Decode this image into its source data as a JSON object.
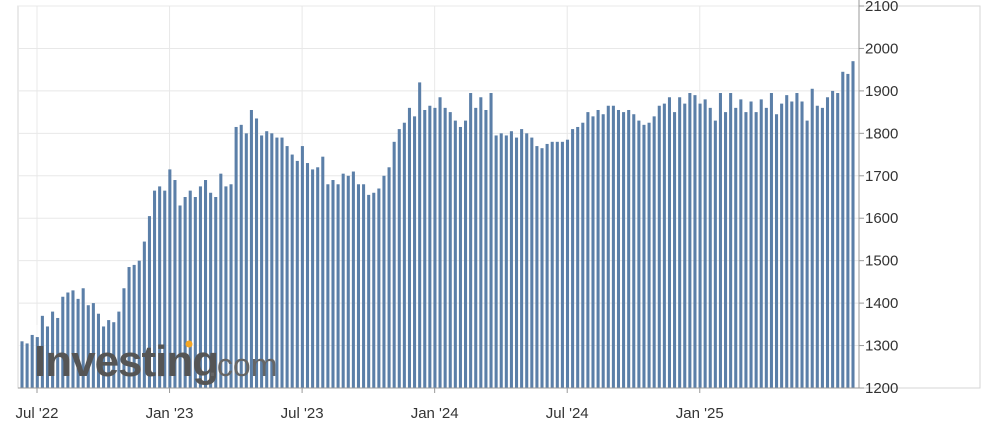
{
  "watermark": {
    "brand": "Investing",
    "suffix": ".com",
    "accent": "#f5a623"
  },
  "colors": {
    "bar": "#5b7fa8",
    "grid": "#e8e8e8",
    "axis": "#999999",
    "text": "#333333"
  },
  "chart_data": {
    "type": "bar",
    "title": "",
    "xlabel": "",
    "ylabel": "",
    "ylim": [
      1200,
      2100
    ],
    "yticks": [
      "1200",
      "1300",
      "1400",
      "1500",
      "1600",
      "1700",
      "1800",
      "1900",
      "2000",
      "2100"
    ],
    "x_tick_labels": [
      {
        "label": "Jul '22",
        "bar_index": 0
      },
      {
        "label": "Jan '23",
        "bar_index": 26
      },
      {
        "label": "Jul '23",
        "bar_index": 52
      },
      {
        "label": "Jan '24",
        "bar_index": 78
      },
      {
        "label": "Jul '24",
        "bar_index": 104
      },
      {
        "label": "Jan '25",
        "bar_index": 130
      }
    ],
    "grid": true,
    "series": [
      {
        "values": [
          1310,
          1305,
          1325,
          1320,
          1370,
          1345,
          1380,
          1365,
          1415,
          1425,
          1430,
          1410,
          1435,
          1395,
          1400,
          1375,
          1345,
          1360,
          1355,
          1380,
          1435,
          1485,
          1490,
          1500,
          1545,
          1605,
          1665,
          1675,
          1665,
          1715,
          1690,
          1630,
          1650,
          1665,
          1650,
          1675,
          1690,
          1660,
          1650,
          1705,
          1675,
          1680,
          1815,
          1820,
          1800,
          1855,
          1835,
          1795,
          1805,
          1800,
          1790,
          1790,
          1770,
          1750,
          1735,
          1770,
          1730,
          1715,
          1720,
          1745,
          1680,
          1690,
          1680,
          1705,
          1700,
          1710,
          1680,
          1680,
          1655,
          1660,
          1670,
          1700,
          1720,
          1780,
          1810,
          1825,
          1860,
          1840,
          1920,
          1855,
          1865,
          1860,
          1885,
          1860,
          1850,
          1830,
          1815,
          1830,
          1895,
          1860,
          1885,
          1855,
          1895,
          1795,
          1800,
          1795,
          1805,
          1790,
          1810,
          1800,
          1790,
          1770,
          1765,
          1775,
          1780,
          1780,
          1780,
          1785,
          1810,
          1815,
          1825,
          1850,
          1840,
          1855,
          1845,
          1865,
          1865,
          1855,
          1850,
          1855,
          1845,
          1830,
          1820,
          1825,
          1840,
          1865,
          1870,
          1885,
          1850,
          1885,
          1870,
          1895,
          1890,
          1870,
          1880,
          1860,
          1830,
          1895,
          1850,
          1895,
          1860,
          1880,
          1850,
          1875,
          1850,
          1880,
          1860,
          1895,
          1845,
          1870,
          1890,
          1875,
          1895,
          1875,
          1830,
          1905,
          1865,
          1860,
          1885,
          1900,
          1895,
          1945,
          1940,
          1970
        ]
      }
    ]
  }
}
